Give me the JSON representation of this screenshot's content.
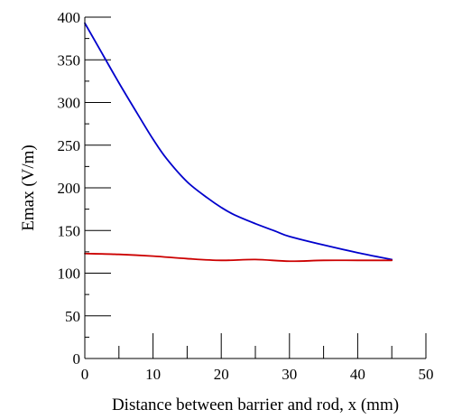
{
  "chart_data": {
    "type": "line",
    "title": "",
    "xlabel": "Distance between barrier and rod, x (mm)",
    "ylabel": "Emax (V/m)",
    "xlim": [
      0,
      50
    ],
    "ylim": [
      0,
      400
    ],
    "x_major_ticks": [
      0,
      10,
      20,
      30,
      40,
      50
    ],
    "x_minor_ticks": [
      5,
      15,
      25,
      35,
      45
    ],
    "y_major_ticks": [
      0,
      50,
      100,
      150,
      200,
      250,
      300,
      350,
      400
    ],
    "y_minor_ticks": [
      25,
      75,
      125,
      175,
      225,
      275,
      325,
      375
    ],
    "grid": false,
    "series": [
      {
        "color": "#0000cc",
        "x": [
          0,
          2,
          5,
          8,
          10,
          12,
          15,
          18,
          20,
          22,
          25,
          28,
          30,
          35,
          40,
          45
        ],
        "values": [
          393,
          365,
          323,
          283,
          257,
          234,
          207,
          188,
          177,
          168,
          158,
          149,
          143,
          133,
          124,
          116
        ]
      },
      {
        "color": "#cc0000",
        "x": [
          0,
          5,
          10,
          15,
          20,
          25,
          30,
          35,
          40,
          45
        ],
        "values": [
          123,
          122,
          120,
          117,
          115,
          116,
          114,
          115,
          115,
          115
        ]
      }
    ]
  }
}
